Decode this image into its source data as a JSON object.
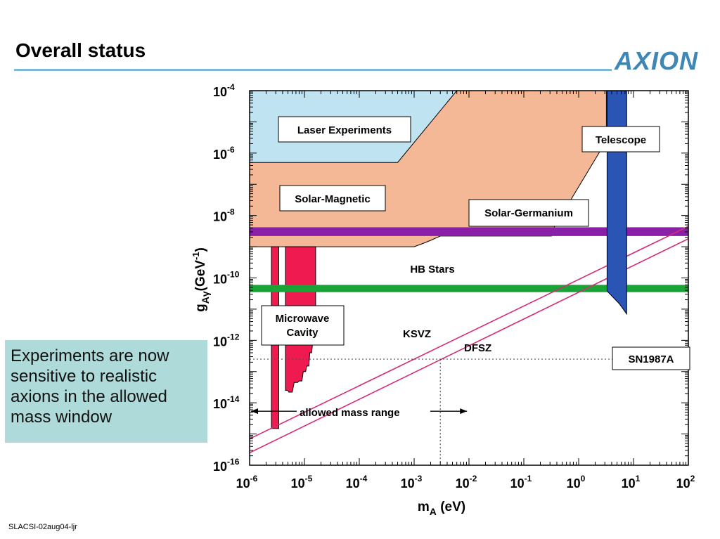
{
  "slide": {
    "title": "Overall status",
    "logo_text": "AXION",
    "callout_text": "Experiments are now sensitive to realistic axions in the allowed mass window",
    "footer": "SLACSI-02aug04-ljr"
  },
  "chart_data": {
    "type": "area",
    "title": "",
    "xlabel": "m",
    "xlabel_sub": "A",
    "xlabel_unit": " (eV)",
    "ylabel": "g",
    "ylabel_sub": "Aγ",
    "ylabel_unit": "(GeV",
    "ylabel_unit_sup": "-1",
    "ylabel_close": ")",
    "x_scale": "log",
    "y_scale": "log",
    "xlim": [
      1e-06,
      100
    ],
    "ylim": [
      1e-16,
      0.0001
    ],
    "x_ticks": [
      {
        "base": "10",
        "exp": "-6",
        "value": 1e-06
      },
      {
        "base": "10",
        "exp": "-5",
        "value": 1e-05
      },
      {
        "base": "10",
        "exp": "-4",
        "value": 0.0001
      },
      {
        "base": "10",
        "exp": "-3",
        "value": 0.001
      },
      {
        "base": "10",
        "exp": "-2",
        "value": 0.01
      },
      {
        "base": "10",
        "exp": "-1",
        "value": 0.1
      },
      {
        "base": "10",
        "exp": "0",
        "value": 1
      },
      {
        "base": "10",
        "exp": "1",
        "value": 10
      },
      {
        "base": "10",
        "exp": "2",
        "value": 100
      }
    ],
    "y_ticks": [
      {
        "base": "10",
        "exp": "-16",
        "value": 1e-16
      },
      {
        "base": "10",
        "exp": "-14",
        "value": 1e-14
      },
      {
        "base": "10",
        "exp": "-12",
        "value": 1e-12
      },
      {
        "base": "10",
        "exp": "-10",
        "value": 1e-10
      },
      {
        "base": "10",
        "exp": "-8",
        "value": 1e-08
      },
      {
        "base": "10",
        "exp": "-6",
        "value": 1e-06
      },
      {
        "base": "10",
        "exp": "-4",
        "value": 0.0001
      }
    ],
    "grid": false,
    "colors": {
      "laser": "#bfe3f0",
      "solar_magnetic": "#f5b896",
      "telescope": "#2a55b5",
      "solar_germanium": "#8a1fa8",
      "hb_stars": "#1aa336",
      "microwave_cavity": "#ee1a50",
      "models": "#d62c78"
    },
    "regions": [
      {
        "id": "solar-magnetic",
        "label": "Solar-Magnetic",
        "color": "#f5b896",
        "polygon": [
          [
            1e-06,
            0.0001
          ],
          [
            3.2,
            0.0001
          ],
          [
            3.2,
            2.5e-06
          ],
          [
            0.32,
            3e-09
          ],
          [
            0.32,
            2.2e-09
          ],
          [
            0.003,
            2.2e-09
          ],
          [
            0.002,
            1.6e-09
          ],
          [
            0.0015,
            1.3e-09
          ],
          [
            0.001,
            1e-09
          ],
          [
            1e-06,
            1e-09
          ]
        ]
      },
      {
        "id": "laser",
        "label": "Laser Experiments",
        "color": "#bfe3f0",
        "polygon": [
          [
            1e-06,
            0.0001
          ],
          [
            0.006,
            0.0001
          ],
          [
            0.0005,
            5e-07
          ],
          [
            1e-06,
            5e-07
          ]
        ]
      },
      {
        "id": "microwave-cavity-a",
        "label": "Microwave Cavity",
        "color": "#ee1a50",
        "polygon": [
          [
            2.5e-06,
            1e-09
          ],
          [
            3.4e-06,
            1e-09
          ],
          [
            3.4e-06,
            1.5e-15
          ],
          [
            2.5e-06,
            1.5e-15
          ]
        ]
      },
      {
        "id": "microwave-cavity-b",
        "label": "",
        "color": "#ee1a50",
        "polygon": [
          [
            4.5e-06,
            1e-09
          ],
          [
            1.6e-05,
            1e-09
          ],
          [
            1.6e-05,
            2.2e-12
          ],
          [
            1.5e-05,
            2.4e-12
          ],
          [
            1.35e-05,
            4e-13
          ],
          [
            1.25e-05,
            4e-13
          ],
          [
            1.2e-05,
            1.5e-13
          ],
          [
            1.1e-05,
            1.5e-13
          ],
          [
            1.05e-05,
            1e-13
          ],
          [
            9.5e-06,
            1e-13
          ],
          [
            9e-06,
            5e-14
          ],
          [
            8e-06,
            5e-14
          ],
          [
            7.5e-06,
            4.5e-14
          ],
          [
            6.5e-06,
            4.5e-14
          ],
          [
            6e-06,
            2.2e-14
          ],
          [
            5.2e-06,
            2.2e-14
          ],
          [
            5e-06,
            2.5e-14
          ],
          [
            4.5e-06,
            2.5e-14
          ]
        ]
      },
      {
        "id": "telescope",
        "label": "Telescope",
        "color": "#2a55b5",
        "polygon": [
          [
            3.3,
            0.0001
          ],
          [
            7.5,
            0.0001
          ],
          [
            7.5,
            7e-12
          ],
          [
            5.5,
            1.5e-11
          ],
          [
            3.3,
            3.8e-11
          ]
        ]
      }
    ],
    "bands": [
      {
        "id": "solar-germanium",
        "label": "Solar-Germanium",
        "color": "#8a1fa8",
        "y_range": [
          2.2e-09,
          4.2e-09
        ]
      },
      {
        "id": "hb-stars",
        "label": "HB Stars",
        "color": "#1aa336",
        "y_range": [
          3.5e-11,
          6e-11
        ]
      }
    ],
    "lines": [
      {
        "id": "ksvz",
        "label": "KSVZ",
        "color": "#d62c78",
        "points": [
          [
            1e-06,
            7e-16
          ],
          [
            100,
            4.5e-09
          ]
        ]
      },
      {
        "id": "dfsz",
        "label": "DFSZ",
        "color": "#d62c78",
        "points": [
          [
            1e-06,
            2.5e-16
          ],
          [
            100,
            1.8e-09
          ]
        ]
      }
    ],
    "limits": [
      {
        "id": "sn1987a",
        "label": "SN1987A",
        "y": 2.5e-13,
        "x_from": 1e-06,
        "x_to": 100,
        "vertical_x": 0.003
      }
    ],
    "annotations": [
      {
        "id": "allowed-mass-range",
        "label": "allowed mass range",
        "x_from": 1e-06,
        "x_to": 0.003,
        "y": 1e-14
      }
    ]
  }
}
